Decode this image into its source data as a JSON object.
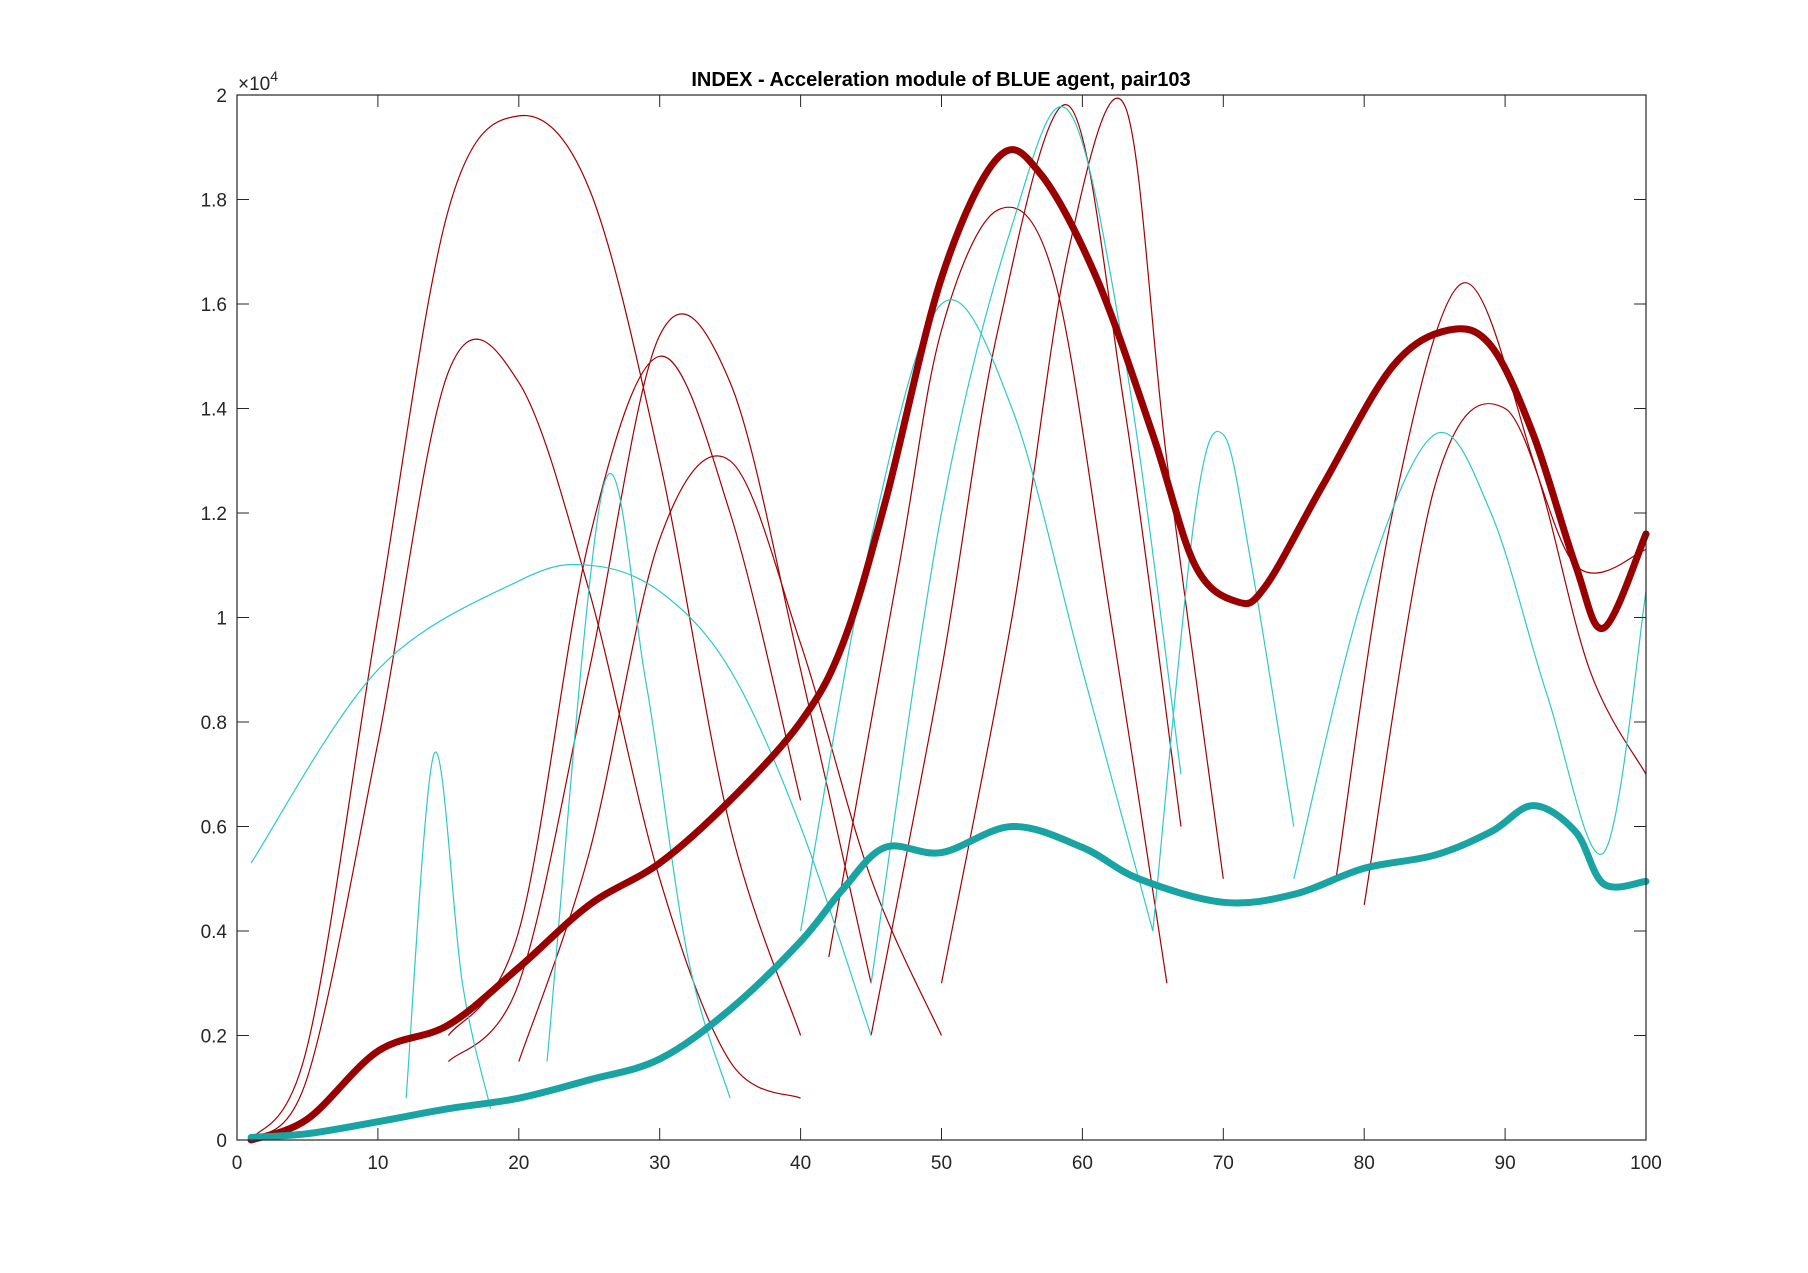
{
  "chart_data": {
    "type": "line",
    "title": "INDEX - Acceleration module of BLUE agent, pair103",
    "xlabel": "",
    "ylabel": "",
    "xlim": [
      0,
      100
    ],
    "ylim": [
      0,
      20000
    ],
    "y_exponent_label": "×10",
    "y_exponent_power": "4",
    "xticks": [
      0,
      10,
      20,
      30,
      40,
      50,
      60,
      70,
      80,
      90,
      100
    ],
    "xtick_labels": [
      "0",
      "10",
      "20",
      "30",
      "40",
      "50",
      "60",
      "70",
      "80",
      "90",
      "100"
    ],
    "yticks": [
      0,
      2000,
      4000,
      6000,
      8000,
      10000,
      12000,
      14000,
      16000,
      18000,
      20000
    ],
    "ytick_labels": [
      "0",
      "0.2",
      "0.4",
      "0.6",
      "0.8",
      "1",
      "1.2",
      "1.4",
      "1.6",
      "1.8",
      "2"
    ],
    "grid": false,
    "legend": "none",
    "colors": {
      "red_trials": "#a30000",
      "cyan_trials": "#2ec9c9",
      "red_mean": "#990000",
      "cyan_mean": "#1aa3a3"
    },
    "mean_series": [
      {
        "color": "#990000",
        "x": [
          1,
          5,
          10,
          15,
          20,
          25,
          30,
          35,
          40,
          43,
          46,
          50,
          54,
          57,
          61,
          65,
          68,
          71,
          73,
          77,
          82,
          86,
          89,
          92,
          95,
          97,
          100
        ],
        "y": [
          0,
          400,
          1700,
          2200,
          3300,
          4500,
          5300,
          6500,
          8000,
          9500,
          12200,
          16500,
          18800,
          18500,
          16500,
          13500,
          11000,
          10300,
          10600,
          12500,
          14800,
          15500,
          15200,
          13500,
          11000,
          9800,
          11600
        ]
      },
      {
        "color": "#1aa3a3",
        "x": [
          1,
          5,
          10,
          15,
          20,
          25,
          30,
          35,
          40,
          43,
          46,
          50,
          55,
          60,
          64,
          70,
          75,
          80,
          85,
          89,
          92,
          95,
          97,
          100
        ],
        "y": [
          50,
          120,
          350,
          600,
          800,
          1150,
          1550,
          2500,
          3800,
          4800,
          5600,
          5500,
          6000,
          5600,
          5000,
          4550,
          4700,
          5200,
          5450,
          5900,
          6400,
          5900,
          4900,
          4950
        ]
      }
    ],
    "trial_series": [
      {
        "color": "#a30000",
        "x": [
          1,
          5,
          10,
          15,
          20,
          25,
          30,
          35,
          40
        ],
        "y": [
          0,
          1800,
          10000,
          17800,
          19600,
          18200,
          13000,
          6000,
          2000
        ]
      },
      {
        "color": "#a30000",
        "x": [
          1,
          5,
          10,
          15,
          20,
          25,
          30,
          35,
          40
        ],
        "y": [
          0,
          1200,
          7600,
          14700,
          14500,
          10500,
          5000,
          1500,
          800
        ]
      },
      {
        "color": "#a30000",
        "x": [
          15,
          20,
          25,
          30,
          35,
          40
        ],
        "y": [
          2000,
          4000,
          11500,
          15000,
          12000,
          6500
        ]
      },
      {
        "color": "#a30000",
        "x": [
          15,
          20,
          25,
          30,
          35,
          40,
          45
        ],
        "y": [
          1500,
          3000,
          9000,
          15400,
          14500,
          9000,
          3000
        ]
      },
      {
        "color": "#a30000",
        "x": [
          20,
          25,
          30,
          35,
          40,
          45,
          50
        ],
        "y": [
          1500,
          5500,
          11500,
          13000,
          9500,
          5000,
          2000
        ]
      },
      {
        "color": "#a30000",
        "x": [
          42,
          47,
          50,
          54,
          58,
          62,
          66
        ],
        "y": [
          3500,
          11000,
          15500,
          17800,
          16500,
          10000,
          3000
        ]
      },
      {
        "color": "#a30000",
        "x": [
          45,
          50,
          54,
          59,
          63,
          67
        ],
        "y": [
          2000,
          9000,
          15500,
          19800,
          14000,
          6000
        ]
      },
      {
        "color": "#a30000",
        "x": [
          50,
          55,
          59,
          63,
          66,
          70
        ],
        "y": [
          3000,
          10000,
          17000,
          19800,
          13000,
          5000
        ]
      },
      {
        "color": "#a30000",
        "x": [
          78,
          82,
          87,
          92,
          96,
          100
        ],
        "y": [
          5000,
          12000,
          16400,
          13000,
          9000,
          7000
        ]
      },
      {
        "color": "#a30000",
        "x": [
          80,
          85,
          90,
          95,
          100
        ],
        "y": [
          4500,
          12500,
          14000,
          11000,
          11300
        ]
      },
      {
        "color": "#2ec9c9",
        "x": [
          1,
          10,
          20,
          25,
          30,
          35,
          40,
          45
        ],
        "y": [
          5300,
          9000,
          10700,
          11000,
          10500,
          9000,
          6000,
          2000
        ]
      },
      {
        "color": "#2ec9c9",
        "x": [
          12,
          14,
          16,
          18
        ],
        "y": [
          800,
          7400,
          3000,
          600
        ]
      },
      {
        "color": "#2ec9c9",
        "x": [
          22,
          26,
          29,
          32,
          35
        ],
        "y": [
          1500,
          12500,
          8800,
          3500,
          800
        ]
      },
      {
        "color": "#2ec9c9",
        "x": [
          45,
          50,
          55,
          59,
          63,
          67
        ],
        "y": [
          3000,
          12000,
          17500,
          19700,
          15000,
          7000
        ]
      },
      {
        "color": "#2ec9c9",
        "x": [
          65,
          68,
          70,
          72,
          75
        ],
        "y": [
          4000,
          12000,
          13500,
          11000,
          6000
        ]
      },
      {
        "color": "#2ec9c9",
        "x": [
          75,
          80,
          85,
          89,
          93,
          97,
          100
        ],
        "y": [
          5000,
          10500,
          13500,
          12000,
          8500,
          5500,
          10500
        ]
      },
      {
        "color": "#2ec9c9",
        "x": [
          40,
          45,
          50,
          55,
          60,
          65
        ],
        "y": [
          4000,
          11500,
          16000,
          14000,
          9000,
          4000
        ]
      }
    ]
  }
}
